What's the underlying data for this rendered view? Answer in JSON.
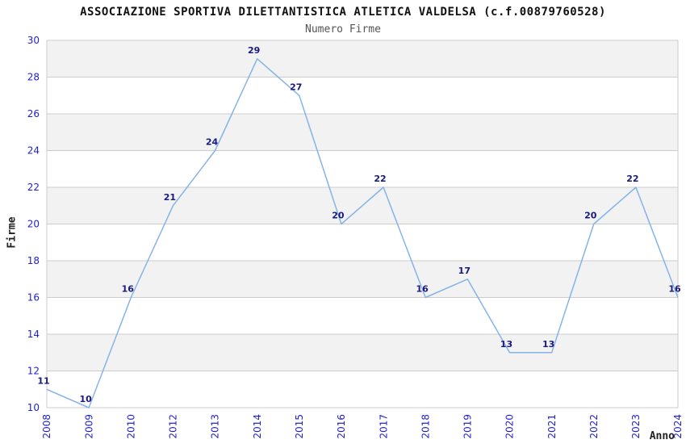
{
  "chart_data": {
    "type": "line",
    "title": "ASSOCIAZIONE SPORTIVA DILETTANTISTICA ATLETICA VALDELSA (c.f.00879760528)",
    "subtitle": "Numero Firme",
    "categories": [
      "2008",
      "2009",
      "2010",
      "2012",
      "2013",
      "2014",
      "2015",
      "2016",
      "2017",
      "2018",
      "2019",
      "2020",
      "2021",
      "2022",
      "2023",
      "2024"
    ],
    "values": [
      11,
      10,
      16,
      21,
      24,
      29,
      27,
      20,
      22,
      16,
      17,
      13,
      13,
      20,
      22,
      16
    ],
    "xlabel": "Anno",
    "ylabel": "Firme",
    "ylim": [
      10,
      30
    ],
    "ytick_step": 2,
    "yticks": [
      10,
      12,
      14,
      16,
      18,
      20,
      22,
      24,
      26,
      28,
      30
    ],
    "legend": "none",
    "grid": "horizontal-gridlines-with-alternating-bands",
    "colors": {
      "line": "#85b3e8",
      "data_label": "#191980",
      "tick_label": "#2222cc",
      "band": "#f2f2f2",
      "gridline": "#cccccc",
      "title": "#111111",
      "subtitle": "#555555",
      "axis_title": "#222222",
      "background": "#ffffff"
    }
  }
}
